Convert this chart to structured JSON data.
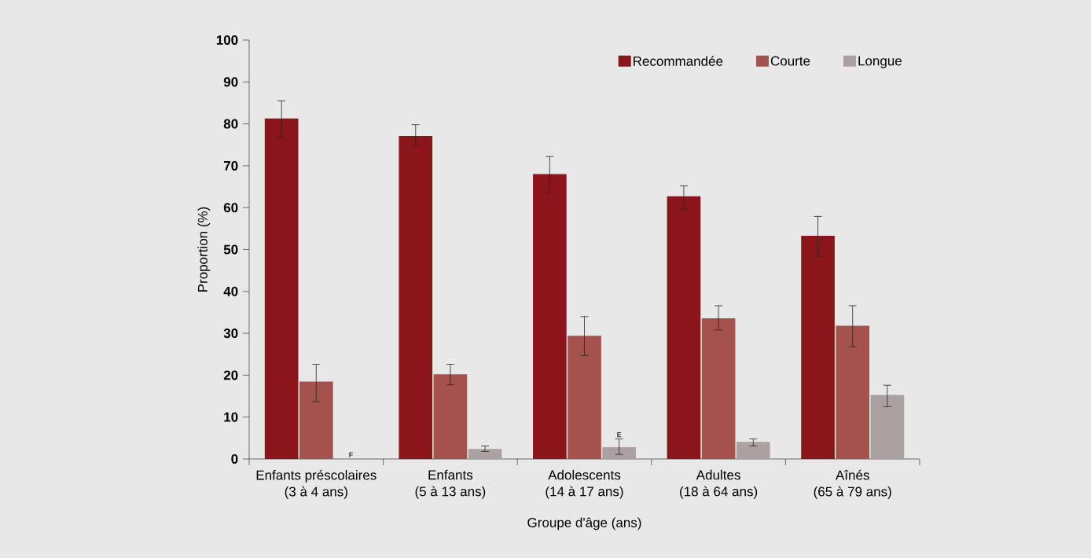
{
  "chart_data": {
    "type": "bar",
    "xlabel": "Groupe d'âge (ans)",
    "ylabel": "Proportion (%)",
    "categories": [
      "Enfants préscolaires\n(3 à 4 ans)",
      "Enfants\n(5 à 13 ans)",
      "Adolescents\n(14 à 17 ans)",
      "Adultes\n(18 à 64 ans)",
      "Aînés\n(65 à 79 ans)"
    ],
    "series": [
      {
        "name": "Recommandée",
        "color": "#8a161b",
        "values": [
          81.3,
          77.1,
          68.0,
          62.7,
          53.3
        ],
        "errors": [
          [
            76.7,
            85.5
          ],
          [
            74.8,
            79.8
          ],
          [
            63.5,
            72.2
          ],
          [
            59.6,
            65.2
          ],
          [
            48.4,
            57.9
          ]
        ]
      },
      {
        "name": "Courte",
        "color": "#a5514e",
        "values": [
          18.5,
          20.2,
          29.4,
          33.6,
          31.8
        ],
        "errors": [
          [
            13.7,
            22.6
          ],
          [
            17.7,
            22.6
          ],
          [
            24.7,
            34.0
          ],
          [
            30.8,
            36.6
          ],
          [
            26.8,
            36.6
          ]
        ]
      },
      {
        "name": "Longue",
        "color": "#aca1a1",
        "values": [
          null,
          2.4,
          2.8,
          4.1,
          15.3
        ],
        "errors": [
          null,
          [
            1.8,
            3.1
          ],
          [
            1.1,
            4.8
          ],
          [
            3.1,
            4.8
          ],
          [
            12.5,
            17.6
          ]
        ],
        "value_labels": [
          "F",
          null,
          "E",
          null,
          null
        ]
      }
    ],
    "ylim": [
      0,
      100
    ],
    "yticks": [
      0,
      10,
      20,
      30,
      40,
      50,
      60,
      70,
      80,
      90,
      100
    ],
    "legend": "top right",
    "grid": false
  }
}
